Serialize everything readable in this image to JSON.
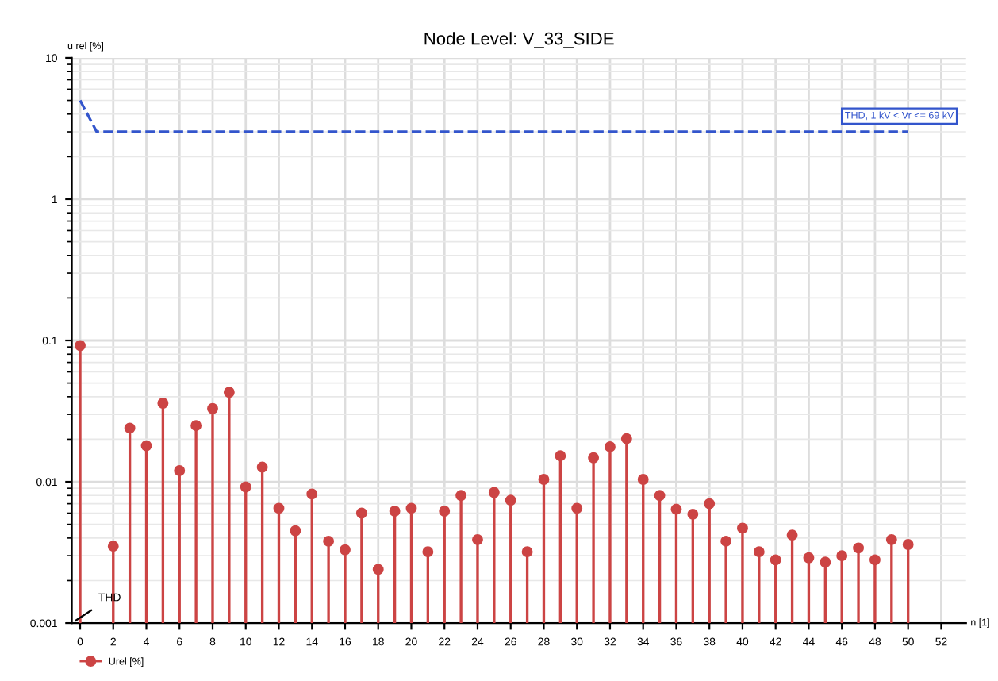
{
  "chart_data": {
    "type": "lollipop",
    "title": "Node Level: V_33_SIDE",
    "xlabel": "n [1]",
    "ylabel": "u rel [%]",
    "series": [
      {
        "name": "Urel [%]",
        "color": "#cc4444",
        "marker": "circle",
        "x": [
          0,
          1,
          2,
          3,
          4,
          5,
          6,
          7,
          8,
          9,
          10,
          11,
          12,
          13,
          14,
          15,
          16,
          17,
          18,
          19,
          20,
          21,
          22,
          23,
          24,
          25,
          26,
          27,
          28,
          29,
          30,
          31,
          32,
          33,
          34,
          35,
          36,
          37,
          38,
          39,
          40,
          41,
          42,
          43,
          44,
          45,
          46,
          47,
          48,
          49,
          50
        ],
        "values": [
          0.092,
          null,
          0.0035,
          0.024,
          0.018,
          0.036,
          0.012,
          0.025,
          0.033,
          0.043,
          0.0092,
          0.0127,
          0.0065,
          0.0045,
          0.0082,
          0.0038,
          0.0033,
          0.006,
          0.0024,
          0.0062,
          0.0065,
          0.0032,
          0.0062,
          0.008,
          0.0039,
          0.0084,
          0.0074,
          0.0032,
          0.0104,
          0.0153,
          0.0065,
          0.0148,
          0.0177,
          0.0202,
          0.0104,
          0.008,
          0.0064,
          0.0059,
          0.007,
          0.0038,
          0.0047,
          0.0032,
          0.0028,
          0.0042,
          0.0029,
          0.0027,
          0.003,
          0.0034,
          0.0028,
          0.0039,
          0.0036
        ]
      },
      {
        "name": "THD, 1 kV < Vr <= 69 kV",
        "type": "line",
        "color": "#3355cc",
        "line_style": "dashed",
        "marker": "none",
        "x": [
          0,
          1,
          50
        ],
        "values": [
          5,
          3,
          3
        ]
      }
    ],
    "annotations": [
      "THD"
    ],
    "log": "y",
    "xlim": [
      -0.5,
      53.5
    ],
    "ylim": [
      0.001,
      10
    ],
    "xticks": [
      0,
      2,
      4,
      6,
      8,
      10,
      12,
      14,
      16,
      18,
      20,
      22,
      24,
      26,
      28,
      30,
      32,
      34,
      36,
      38,
      40,
      42,
      44,
      46,
      48,
      50,
      52
    ],
    "yticks": [
      0.001,
      0.01,
      0.1,
      1,
      10
    ],
    "grid": true,
    "legend": "bottom left"
  }
}
